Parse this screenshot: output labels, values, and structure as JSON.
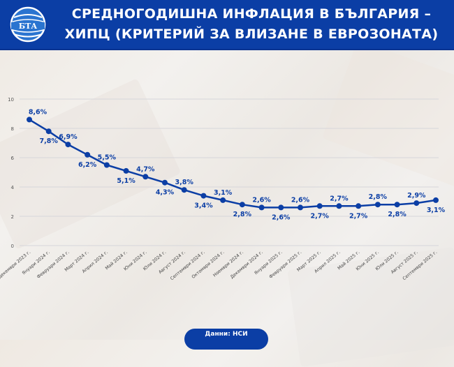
{
  "header": {
    "logo_text": "БТА",
    "title_line1": "СРЕДНОГОДИШНА ИНФЛАЦИЯ В БЪЛГАРИЯ –",
    "title_line2": "ХИПЦ (КРИТЕРИЙ ЗА ВЛИЗАНЕ В ЕВРОЗОНАТА)"
  },
  "footer": {
    "source": "Данни: НСИ"
  },
  "colors": {
    "brand_blue": "#0b3ea5",
    "line": "#0b3ea5",
    "label": "#0b3ea5"
  },
  "chart_data": {
    "type": "line",
    "title": "СРЕДНОГОДИШНА ИНФЛАЦИЯ В БЪЛГАРИЯ – ХИПЦ (КРИТЕРИЙ ЗА ВЛИЗАНЕ В ЕВРОЗОНАТА)",
    "xlabel": "",
    "ylabel": "",
    "ylim": [
      0,
      10
    ],
    "yticks": [
      0,
      2,
      4,
      6,
      8,
      10
    ],
    "grid": true,
    "legend": null,
    "categories": [
      "Декември 2023 г.",
      "Януари 2024 г.",
      "Февруари 2024 г.",
      "Март 2024 г.",
      "Април 2024 г.",
      "Май 2024 г.",
      "Юни 2024 г.",
      "Юли 2024 г.",
      "Август 2024 г.",
      "Септември 2024 г.",
      "Октомври 2024 г.",
      "Ноември 2024 г.",
      "Декември 2024 г.",
      "Януари 2025 г.",
      "Февруари 2025 г.",
      "Март 2025 г.",
      "Април 2025 г.",
      "Май 2025 г.",
      "Юни 2025 г.",
      "Юли 2025 г.",
      "Август 2025 г.",
      "Септември 2025 г."
    ],
    "values": [
      8.6,
      7.8,
      6.9,
      6.2,
      5.5,
      5.1,
      4.7,
      4.3,
      3.8,
      3.4,
      3.1,
      2.8,
      2.6,
      2.6,
      2.6,
      2.7,
      2.7,
      2.7,
      2.8,
      2.8,
      2.9,
      3.1
    ],
    "labels": [
      "8,6%",
      "7,8%",
      "6,9%",
      "6,2%",
      "5,5%",
      "5,1%",
      "4,7%",
      "4,3%",
      "3,8%",
      "3,4%",
      "3,1%",
      "2,8%",
      "2,6%",
      "2,6%",
      "2,6%",
      "2,7%",
      "2,7%",
      "2,7%",
      "2,8%",
      "2,8%",
      "2,9%",
      "3,1%"
    ],
    "label_positions": [
      "above",
      "below",
      "above",
      "below",
      "above",
      "below",
      "above",
      "below",
      "above",
      "below",
      "above",
      "below",
      "above",
      "below",
      "above",
      "below",
      "above",
      "below",
      "above",
      "below",
      "above",
      "below"
    ]
  }
}
